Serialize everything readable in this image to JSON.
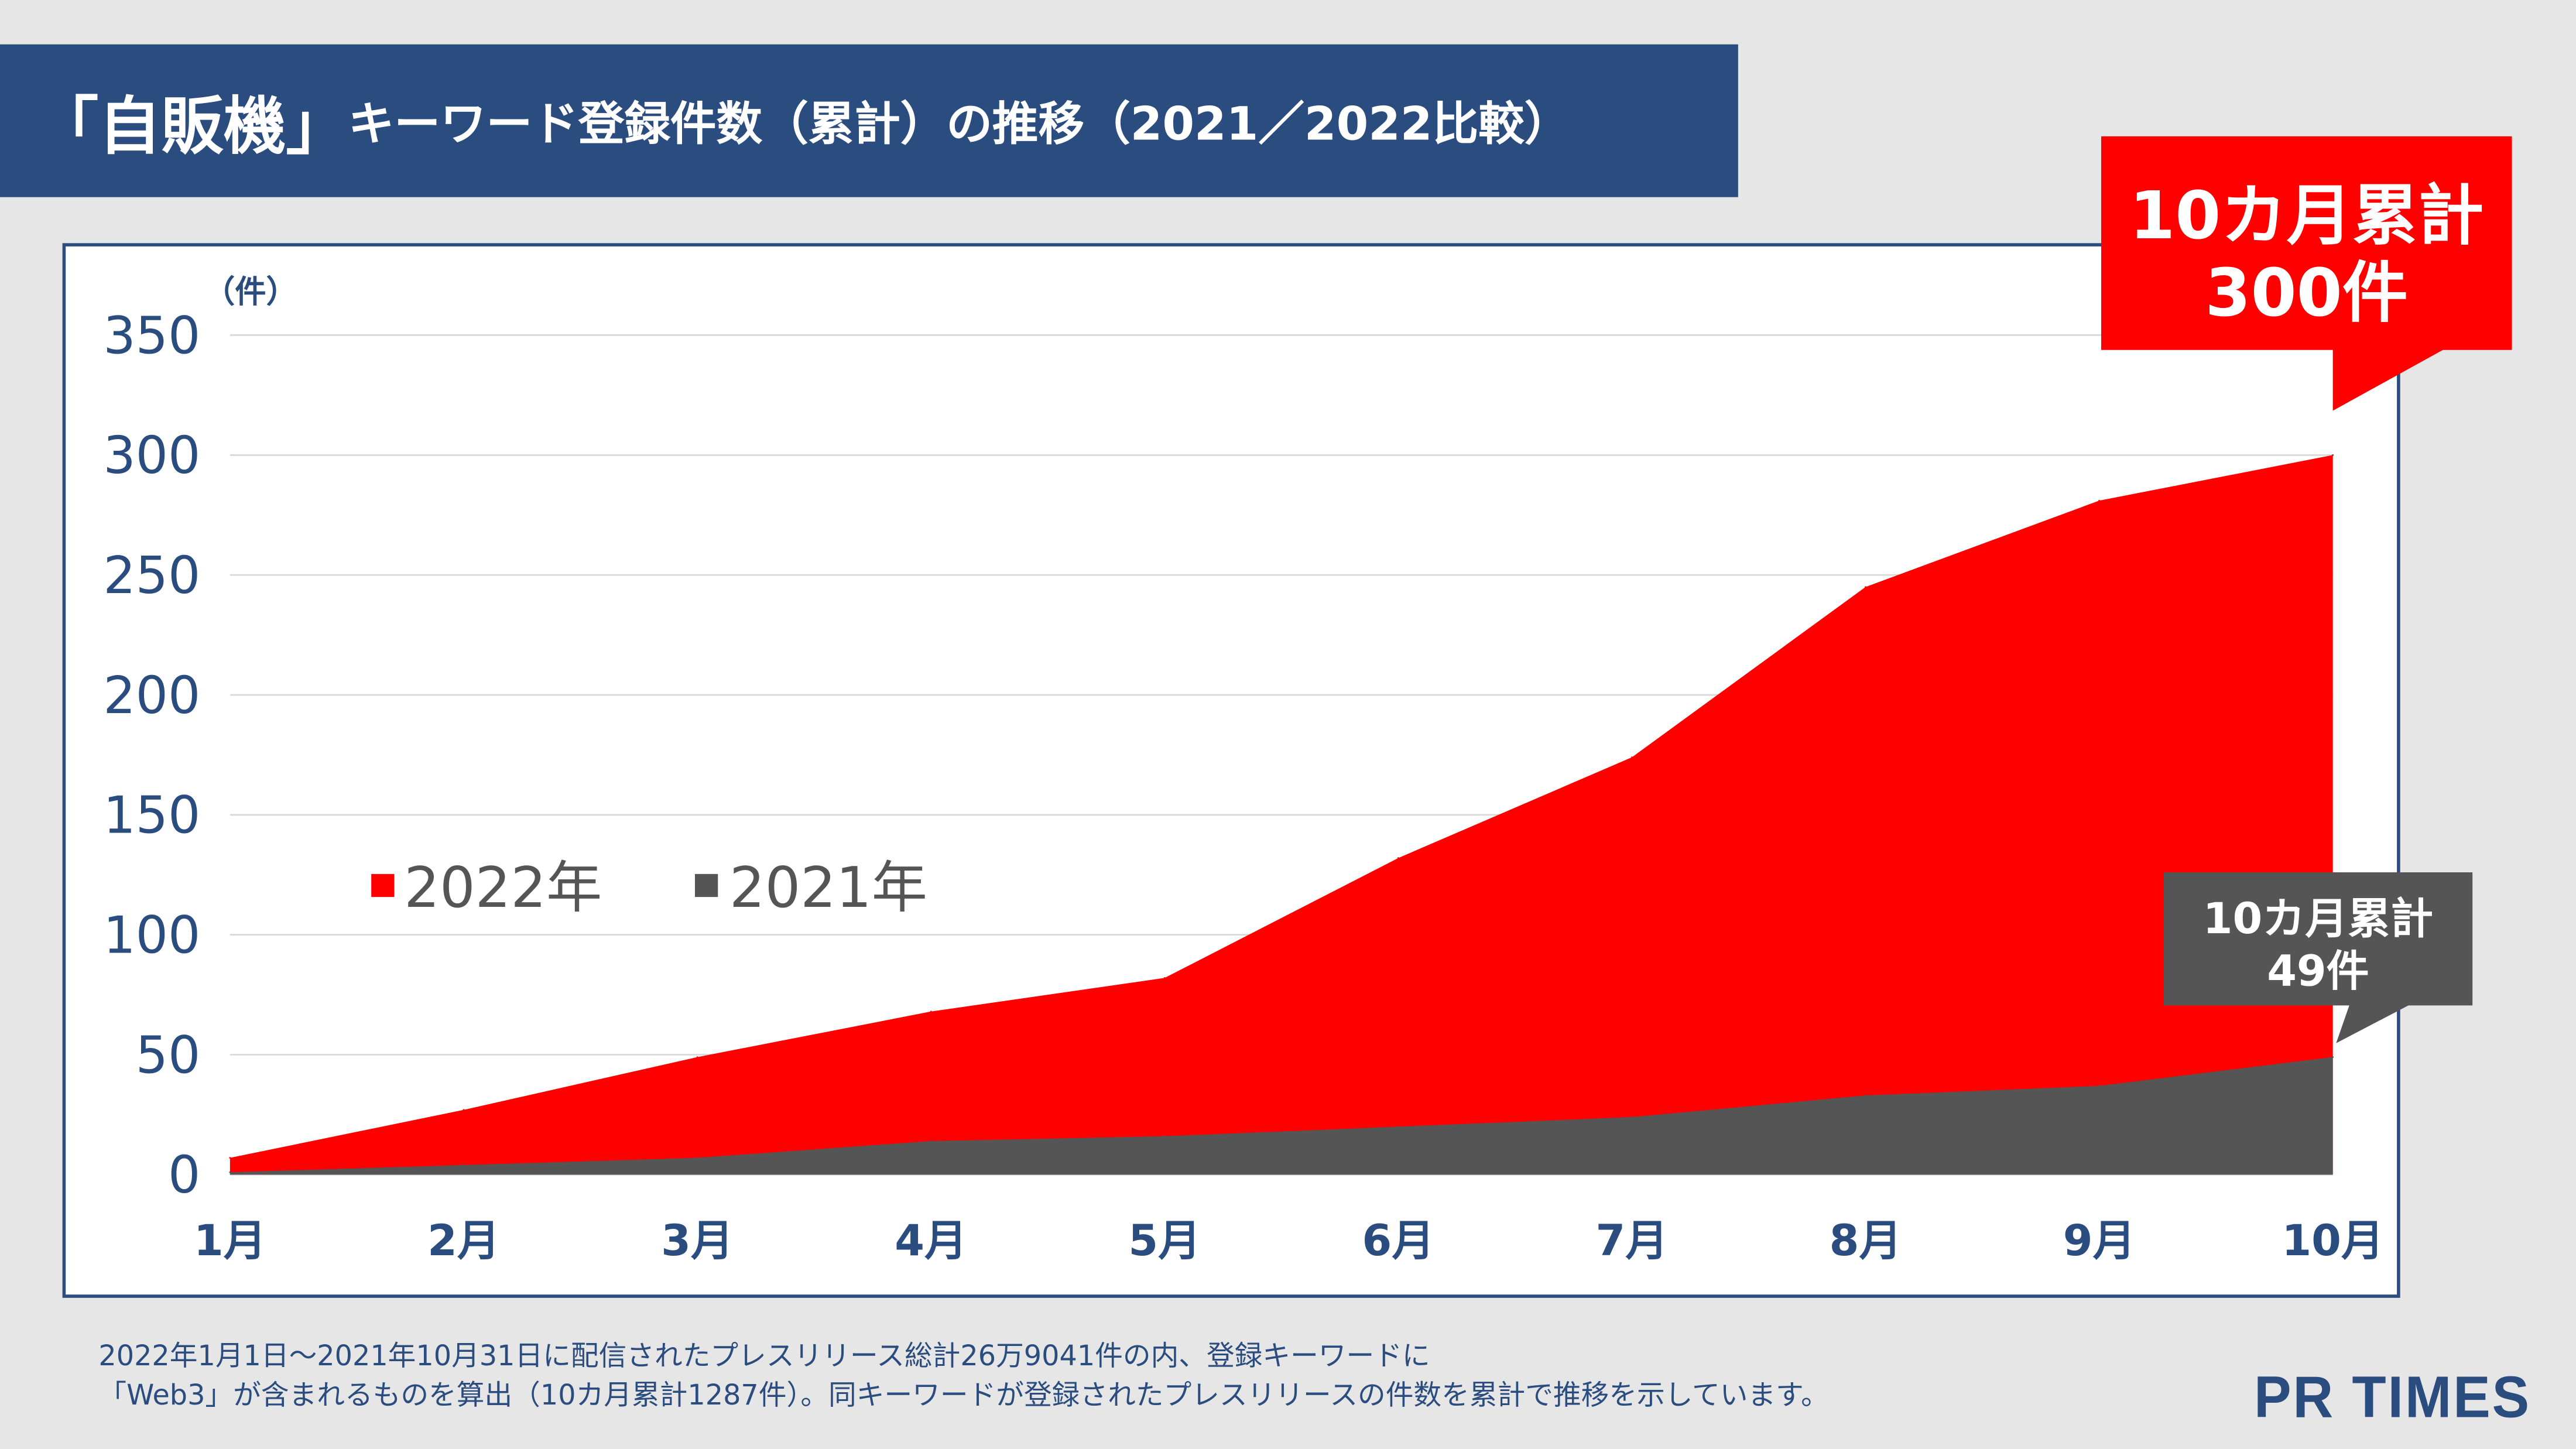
{
  "title": {
    "main": "「自販機」",
    "sub": "キーワード登録件数（累計）の推移（2021／2022比較）"
  },
  "chart_data": {
    "type": "area",
    "title": "「自販機」キーワード登録件数（累計）の推移（2021／2022比較）",
    "ylabel": "（件）",
    "xlabel": "",
    "categories": [
      "1月",
      "2月",
      "3月",
      "4月",
      "5月",
      "6月",
      "7月",
      "8月",
      "9月",
      "10月"
    ],
    "yticks": [
      0,
      50,
      100,
      150,
      200,
      250,
      300,
      350
    ],
    "ylim": [
      0,
      350
    ],
    "grid": true,
    "legend_placement": "center-left",
    "series": [
      {
        "name": "2022年",
        "color": "#ff0000",
        "values": [
          7,
          27,
          49,
          68,
          82,
          132,
          174,
          245,
          281,
          300
        ]
      },
      {
        "name": "2021年",
        "color": "#555555",
        "values": [
          1,
          4,
          7,
          14,
          16,
          20,
          24,
          33,
          37,
          49
        ]
      }
    ],
    "annotations": [
      {
        "line1": "10カ月累計",
        "line2": "300件",
        "color": "#ff0000",
        "series": "2022年"
      },
      {
        "line1": "10カ月累計",
        "line2": "49件",
        "color": "#555555",
        "series": "2021年"
      }
    ]
  },
  "footnote": {
    "line1": "2022年1月1日～2021年10月31日に配信されたプレスリリース総計26万9041件の内、登録キーワードに",
    "line2": "「Web3」が含まれるものを算出（10カ月累計1287件）。同キーワードが登録されたプレスリリースの件数を累計で推移を示しています。"
  },
  "logo": "PR TIMES"
}
